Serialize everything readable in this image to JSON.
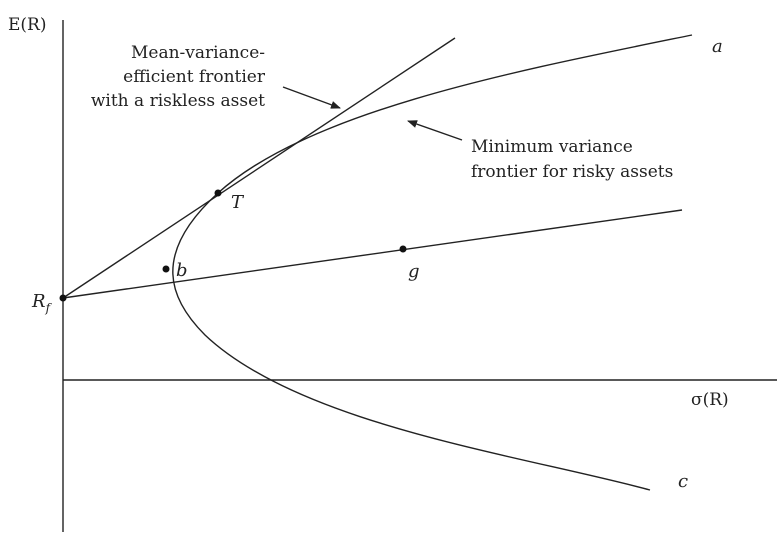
{
  "axes": {
    "y_label": "E(R)",
    "x_label": "σ(R)"
  },
  "points": {
    "rf": "R",
    "rf_sub": "f",
    "tangency": "T",
    "b": "b",
    "g": "g"
  },
  "curve_labels": {
    "upper_end": "a",
    "lower_end": "c"
  },
  "annotations": {
    "cml_line1": "Mean-variance-",
    "cml_line2": "efficient frontier",
    "cml_line3": "with a riskless asset",
    "mv_line1": "Minimum variance",
    "mv_line2": "frontier for risky assets"
  }
}
